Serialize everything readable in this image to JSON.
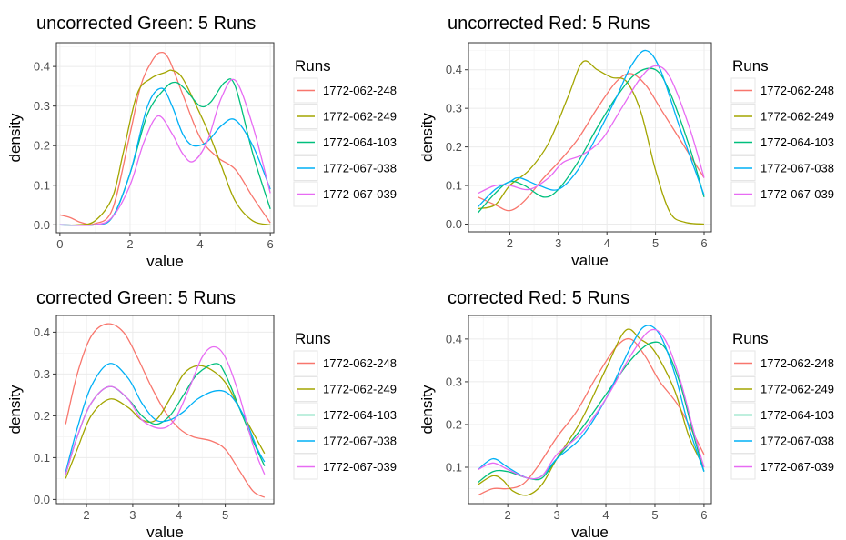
{
  "legend": {
    "title": "Runs",
    "items": [
      "1772-062-248",
      "1772-062-249",
      "1772-064-103",
      "1772-067-038",
      "1772-067-039"
    ],
    "colors": [
      "#F8766D",
      "#A3A500",
      "#00BF7D",
      "#00B0F6",
      "#E76BF3"
    ]
  },
  "chart_data": [
    {
      "type": "line",
      "title": "uncorrected Green: 5 Runs",
      "xlabel": "value",
      "ylabel": "density",
      "xlim": [
        -0.1,
        6.1
      ],
      "ylim": [
        -0.02,
        0.46
      ],
      "xticks": [
        0,
        2,
        4,
        6
      ],
      "yticks": [
        0.0,
        0.1,
        0.2,
        0.3,
        0.4
      ],
      "ytick_labels": [
        "0.0",
        "0.1",
        "0.2",
        "0.3",
        "0.4"
      ],
      "grid": true,
      "legend_position": "right",
      "series": [
        {
          "name": "1772-062-248",
          "x": [
            0,
            0.3,
            0.6,
            1.0,
            1.5,
            2.0,
            2.3,
            2.6,
            2.85,
            3.1,
            3.5,
            4.0,
            4.5,
            5.0,
            5.5,
            6.0
          ],
          "y": [
            0.025,
            0.018,
            0.006,
            0.003,
            0.04,
            0.23,
            0.35,
            0.41,
            0.435,
            0.42,
            0.33,
            0.22,
            0.17,
            0.14,
            0.07,
            0.005
          ]
        },
        {
          "name": "1772-062-249",
          "x": [
            0,
            0.5,
            1.0,
            1.5,
            1.8,
            2.2,
            2.6,
            3.0,
            3.2,
            3.5,
            4.0,
            4.3,
            4.6,
            5.0,
            5.5,
            6.0
          ],
          "y": [
            0.0,
            0.0,
            0.01,
            0.07,
            0.18,
            0.33,
            0.37,
            0.385,
            0.39,
            0.37,
            0.28,
            0.22,
            0.15,
            0.06,
            0.01,
            0.0
          ]
        },
        {
          "name": "1772-064-103",
          "x": [
            0,
            1.0,
            1.5,
            2.0,
            2.5,
            3.0,
            3.3,
            3.6,
            4.0,
            4.3,
            4.7,
            5.0,
            5.5,
            6.0
          ],
          "y": [
            0.0,
            0.0,
            0.02,
            0.13,
            0.28,
            0.345,
            0.36,
            0.34,
            0.3,
            0.31,
            0.36,
            0.35,
            0.18,
            0.04
          ]
        },
        {
          "name": "1772-067-038",
          "x": [
            0,
            1.0,
            1.5,
            2.0,
            2.5,
            2.9,
            3.2,
            3.5,
            3.8,
            4.2,
            4.6,
            5.0,
            5.5,
            6.0
          ],
          "y": [
            0.0,
            0.0,
            0.02,
            0.13,
            0.3,
            0.345,
            0.3,
            0.23,
            0.2,
            0.21,
            0.25,
            0.265,
            0.2,
            0.09
          ]
        },
        {
          "name": "1772-067-039",
          "x": [
            0,
            1.0,
            1.5,
            2.0,
            2.4,
            2.8,
            3.2,
            3.5,
            3.8,
            4.2,
            4.6,
            5.0,
            5.5,
            6.0
          ],
          "y": [
            0.0,
            0.0,
            0.02,
            0.1,
            0.21,
            0.275,
            0.23,
            0.18,
            0.16,
            0.21,
            0.32,
            0.365,
            0.25,
            0.08
          ]
        }
      ]
    },
    {
      "type": "line",
      "title": "uncorrected Red: 5 Runs",
      "xlabel": "value",
      "ylabel": "density",
      "xlim": [
        1.15,
        6.15
      ],
      "ylim": [
        -0.02,
        0.47
      ],
      "xticks": [
        2,
        3,
        4,
        5,
        6
      ],
      "yticks": [
        0.0,
        0.1,
        0.2,
        0.3,
        0.4
      ],
      "ytick_labels": [
        "0.0",
        "0.1",
        "0.2",
        "0.3",
        "0.4"
      ],
      "grid": true,
      "legend_position": "right",
      "series": [
        {
          "name": "1772-062-248",
          "x": [
            1.35,
            1.7,
            2.0,
            2.3,
            2.7,
            3.0,
            3.4,
            3.8,
            4.2,
            4.5,
            4.8,
            5.1,
            5.5,
            6.0
          ],
          "y": [
            0.07,
            0.05,
            0.035,
            0.06,
            0.12,
            0.16,
            0.22,
            0.3,
            0.37,
            0.39,
            0.36,
            0.3,
            0.22,
            0.12
          ]
        },
        {
          "name": "1772-062-249",
          "x": [
            1.35,
            1.7,
            2.0,
            2.4,
            2.8,
            3.2,
            3.5,
            3.8,
            4.1,
            4.4,
            4.7,
            5.0,
            5.3,
            5.6,
            6.0
          ],
          "y": [
            0.04,
            0.05,
            0.1,
            0.14,
            0.21,
            0.33,
            0.42,
            0.4,
            0.38,
            0.37,
            0.29,
            0.14,
            0.03,
            0.005,
            0.0
          ]
        },
        {
          "name": "1772-064-103",
          "x": [
            1.35,
            1.7,
            2.0,
            2.3,
            2.7,
            3.0,
            3.4,
            3.8,
            4.2,
            4.6,
            5.0,
            5.3,
            5.7,
            6.0
          ],
          "y": [
            0.03,
            0.08,
            0.11,
            0.1,
            0.07,
            0.09,
            0.16,
            0.25,
            0.33,
            0.39,
            0.4,
            0.34,
            0.2,
            0.07
          ]
        },
        {
          "name": "1772-067-038",
          "x": [
            1.35,
            1.7,
            2.0,
            2.2,
            2.6,
            3.0,
            3.4,
            3.8,
            4.2,
            4.5,
            4.8,
            5.1,
            5.5,
            6.0
          ],
          "y": [
            0.045,
            0.09,
            0.11,
            0.12,
            0.1,
            0.09,
            0.14,
            0.23,
            0.33,
            0.41,
            0.45,
            0.4,
            0.25,
            0.075
          ]
        },
        {
          "name": "1772-067-039",
          "x": [
            1.35,
            1.7,
            2.0,
            2.4,
            2.8,
            3.1,
            3.5,
            3.9,
            4.3,
            4.7,
            5.0,
            5.3,
            5.7,
            6.0
          ],
          "y": [
            0.08,
            0.1,
            0.1,
            0.09,
            0.12,
            0.16,
            0.18,
            0.22,
            0.3,
            0.38,
            0.41,
            0.38,
            0.25,
            0.12
          ]
        }
      ]
    },
    {
      "type": "line",
      "title": "corrected Green: 5 Runs",
      "xlabel": "value",
      "ylabel": "density",
      "xlim": [
        1.35,
        6.05
      ],
      "ylim": [
        -0.01,
        0.44
      ],
      "xticks": [
        2,
        3,
        4,
        5
      ],
      "yticks": [
        0.0,
        0.1,
        0.2,
        0.3,
        0.4
      ],
      "ytick_labels": [
        "0.0",
        "0.1",
        "0.2",
        "0.3",
        "0.4"
      ],
      "grid": true,
      "legend_position": "right",
      "series": [
        {
          "name": "1772-062-248",
          "x": [
            1.55,
            1.8,
            2.1,
            2.45,
            2.8,
            3.1,
            3.4,
            3.7,
            4.0,
            4.3,
            4.7,
            5.0,
            5.3,
            5.6,
            5.85
          ],
          "y": [
            0.18,
            0.3,
            0.39,
            0.42,
            0.4,
            0.34,
            0.27,
            0.21,
            0.17,
            0.15,
            0.14,
            0.12,
            0.07,
            0.02,
            0.005
          ]
        },
        {
          "name": "1772-062-249",
          "x": [
            1.55,
            1.8,
            2.1,
            2.5,
            2.9,
            3.2,
            3.5,
            3.8,
            4.1,
            4.4,
            4.7,
            5.0,
            5.3,
            5.6,
            5.85
          ],
          "y": [
            0.05,
            0.12,
            0.2,
            0.24,
            0.22,
            0.19,
            0.19,
            0.24,
            0.3,
            0.32,
            0.31,
            0.28,
            0.22,
            0.16,
            0.11
          ]
        },
        {
          "name": "1772-064-103",
          "x": [
            1.55,
            1.8,
            2.1,
            2.5,
            2.9,
            3.2,
            3.5,
            3.8,
            4.1,
            4.4,
            4.8,
            5.0,
            5.3,
            5.6,
            5.85
          ],
          "y": [
            0.06,
            0.15,
            0.23,
            0.27,
            0.24,
            0.2,
            0.18,
            0.2,
            0.25,
            0.3,
            0.325,
            0.3,
            0.22,
            0.14,
            0.08
          ]
        },
        {
          "name": "1772-067-038",
          "x": [
            1.55,
            1.8,
            2.1,
            2.5,
            2.9,
            3.2,
            3.5,
            3.8,
            4.1,
            4.4,
            4.8,
            5.1,
            5.4,
            5.7,
            5.85
          ],
          "y": [
            0.065,
            0.17,
            0.27,
            0.325,
            0.29,
            0.23,
            0.19,
            0.19,
            0.21,
            0.24,
            0.26,
            0.25,
            0.2,
            0.12,
            0.09
          ]
        },
        {
          "name": "1772-067-039",
          "x": [
            1.55,
            1.8,
            2.1,
            2.5,
            2.9,
            3.2,
            3.6,
            3.9,
            4.2,
            4.5,
            4.75,
            5.0,
            5.3,
            5.6,
            5.85
          ],
          "y": [
            0.06,
            0.15,
            0.23,
            0.27,
            0.24,
            0.19,
            0.17,
            0.19,
            0.26,
            0.34,
            0.365,
            0.34,
            0.25,
            0.13,
            0.06
          ]
        }
      ]
    },
    {
      "type": "line",
      "title": "corrected Red: 5 Runs",
      "xlabel": "value",
      "ylabel": "density",
      "xlim": [
        1.2,
        6.15
      ],
      "ylim": [
        0.015,
        0.455
      ],
      "xticks": [
        2,
        3,
        4,
        5,
        6
      ],
      "yticks": [
        0.1,
        0.2,
        0.3,
        0.4
      ],
      "ytick_labels": [
        "0.1",
        "0.2",
        "0.3",
        "0.4"
      ],
      "grid": true,
      "legend_position": "right",
      "series": [
        {
          "name": "1772-062-248",
          "x": [
            1.4,
            1.7,
            2.0,
            2.3,
            2.6,
            3.0,
            3.4,
            3.8,
            4.2,
            4.5,
            4.8,
            5.1,
            5.5,
            6.0
          ],
          "y": [
            0.035,
            0.05,
            0.05,
            0.06,
            0.1,
            0.17,
            0.23,
            0.31,
            0.38,
            0.4,
            0.36,
            0.3,
            0.24,
            0.13
          ]
        },
        {
          "name": "1772-062-249",
          "x": [
            1.4,
            1.7,
            1.9,
            2.1,
            2.4,
            2.7,
            3.0,
            3.5,
            4.0,
            4.4,
            4.7,
            5.0,
            5.4,
            5.7,
            6.0
          ],
          "y": [
            0.06,
            0.08,
            0.07,
            0.045,
            0.035,
            0.06,
            0.12,
            0.21,
            0.33,
            0.42,
            0.4,
            0.37,
            0.28,
            0.17,
            0.1
          ]
        },
        {
          "name": "1772-064-103",
          "x": [
            1.4,
            1.7,
            2.0,
            2.4,
            2.7,
            3.0,
            3.5,
            4.0,
            4.5,
            4.9,
            5.2,
            5.5,
            5.8,
            6.0
          ],
          "y": [
            0.065,
            0.09,
            0.09,
            0.075,
            0.075,
            0.12,
            0.19,
            0.27,
            0.35,
            0.39,
            0.38,
            0.3,
            0.17,
            0.09
          ]
        },
        {
          "name": "1772-067-038",
          "x": [
            1.4,
            1.7,
            2.0,
            2.4,
            2.7,
            3.0,
            3.5,
            4.0,
            4.5,
            4.8,
            5.1,
            5.4,
            5.7,
            6.0
          ],
          "y": [
            0.095,
            0.12,
            0.1,
            0.075,
            0.08,
            0.12,
            0.17,
            0.26,
            0.38,
            0.43,
            0.41,
            0.32,
            0.19,
            0.09
          ]
        },
        {
          "name": "1772-067-039",
          "x": [
            1.4,
            1.7,
            2.0,
            2.4,
            2.7,
            3.0,
            3.5,
            4.0,
            4.5,
            4.9,
            5.2,
            5.5,
            5.8,
            6.0
          ],
          "y": [
            0.095,
            0.11,
            0.095,
            0.075,
            0.08,
            0.13,
            0.18,
            0.26,
            0.36,
            0.42,
            0.4,
            0.31,
            0.18,
            0.1
          ]
        }
      ]
    }
  ]
}
